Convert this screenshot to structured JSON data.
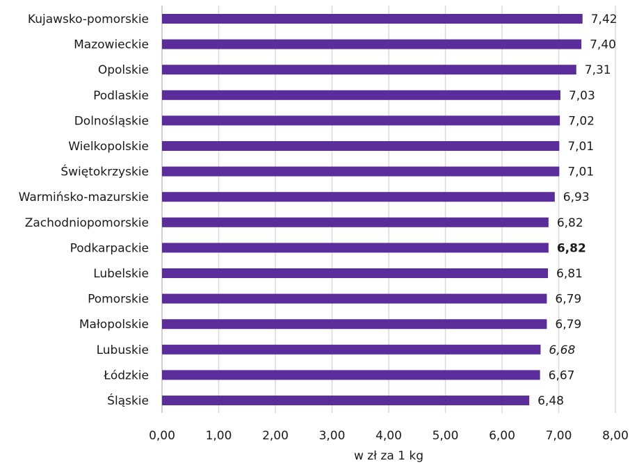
{
  "chart_data": {
    "type": "bar",
    "orientation": "horizontal",
    "categories": [
      "Kujawsko-pomorskie",
      "Mazowieckie",
      "Opolskie",
      "Podlaskie",
      "Dolnośląskie",
      "Wielkopolskie",
      "Świętokrzyskie",
      "Warmińsko-mazurskie",
      "Zachodniopomorskie",
      "Podkarpackie",
      "Lubelskie",
      "Pomorskie",
      "Małopolskie",
      "Lubuskie",
      "Łódzkie",
      "Śląskie"
    ],
    "values": [
      7.42,
      7.4,
      7.31,
      7.03,
      7.02,
      7.01,
      7.01,
      6.93,
      6.82,
      6.82,
      6.81,
      6.79,
      6.79,
      6.68,
      6.67,
      6.48
    ],
    "value_labels": [
      "7,42",
      "7,40",
      "7,31",
      "7,03",
      "7,02",
      "7,01",
      "7,01",
      "6,93",
      "6,82",
      "6,82",
      "6,81",
      "6,79",
      "6,79",
      "6,68",
      "6,67",
      "6,48"
    ],
    "highlight_bold": [
      "Podkarpackie"
    ],
    "highlight_italic": [
      "Lubuskie"
    ],
    "xlabel": "w zł za 1 kg",
    "ylabel": "",
    "xlim": [
      0,
      8
    ],
    "xticks": [
      0,
      1,
      2,
      3,
      4,
      5,
      6,
      7,
      8
    ],
    "xtick_labels": [
      "0,00",
      "1,00",
      "2,00",
      "3,00",
      "4,00",
      "5,00",
      "6,00",
      "7,00",
      "8,00"
    ],
    "grid": true,
    "legend": "none",
    "colors": {
      "bar": "#5b2d9b",
      "grid": "#d9d9d9",
      "text": "#1a1a1a"
    }
  }
}
